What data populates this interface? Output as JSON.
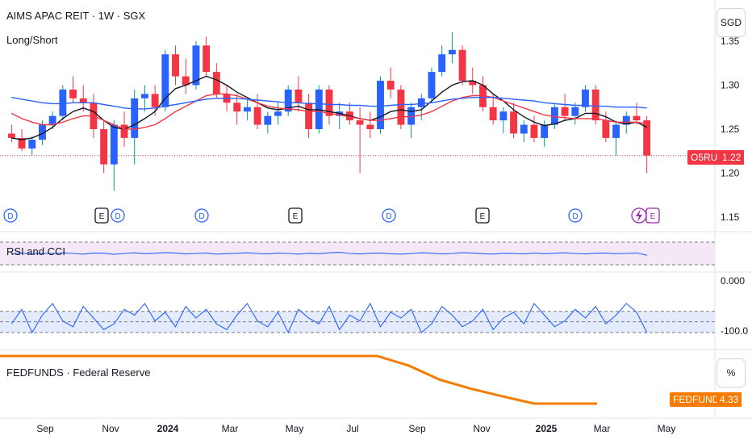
{
  "header": {
    "title": "AIMS APAC REIT · 1W · SGX",
    "subtitle": "Long/Short",
    "currency": "SGD"
  },
  "price_tag": {
    "symbol": "O5RU",
    "value": "1.22"
  },
  "rsi_pane": {
    "label": "RSI and CCI"
  },
  "cci_pane": {
    "tick_top": "0.000",
    "tick_bottom": "-100.0"
  },
  "fed_pane": {
    "label": "FEDFUNDS · Federal Reserve",
    "unit": "%",
    "tag_symbol": "FEDFUNDS",
    "tag_value": "4.33"
  },
  "colors": {
    "up": "#2962ff",
    "down": "#f23645",
    "ma_fast": "#131722",
    "ma_slow": "#f23645",
    "ma_blue": "#2962ff",
    "fed": "#f57c00"
  },
  "chart_data": [
    {
      "type": "candlestick",
      "title": "AIMS APAC REIT · 1W · SGX",
      "ylabel": "SGD",
      "yticks": [
        "1.35",
        "1.30",
        "1.25",
        "1.20",
        "1.15"
      ],
      "ylim": [
        1.14,
        1.36
      ],
      "x_ticks": [
        "Sep",
        "Nov",
        "2024",
        "Mar",
        "May",
        "Jul",
        "Sep",
        "Nov",
        "2025",
        "Mar",
        "May"
      ],
      "last_price": 1.22,
      "candles": [
        [
          1.245,
          1.255,
          1.235,
          1.24
        ],
        [
          1.24,
          1.25,
          1.225,
          1.228
        ],
        [
          1.228,
          1.242,
          1.22,
          1.238
        ],
        [
          1.238,
          1.26,
          1.232,
          1.255
        ],
        [
          1.255,
          1.27,
          1.25,
          1.265
        ],
        [
          1.265,
          1.3,
          1.26,
          1.295
        ],
        [
          1.295,
          1.31,
          1.28,
          1.285
        ],
        [
          1.285,
          1.3,
          1.27,
          1.28
        ],
        [
          1.28,
          1.29,
          1.24,
          1.25
        ],
        [
          1.25,
          1.26,
          1.2,
          1.21
        ],
        [
          1.21,
          1.26,
          1.18,
          1.255
        ],
        [
          1.255,
          1.27,
          1.23,
          1.24
        ],
        [
          1.24,
          1.295,
          1.21,
          1.285
        ],
        [
          1.285,
          1.3,
          1.27,
          1.29
        ],
        [
          1.29,
          1.3,
          1.265,
          1.275
        ],
        [
          1.275,
          1.34,
          1.27,
          1.335
        ],
        [
          1.335,
          1.345,
          1.3,
          1.31
        ],
        [
          1.31,
          1.33,
          1.29,
          1.3
        ],
        [
          1.3,
          1.35,
          1.295,
          1.345
        ],
        [
          1.345,
          1.355,
          1.31,
          1.315
        ],
        [
          1.315,
          1.325,
          1.285,
          1.29
        ],
        [
          1.29,
          1.3,
          1.27,
          1.28
        ],
        [
          1.28,
          1.29,
          1.255,
          1.27
        ],
        [
          1.27,
          1.285,
          1.26,
          1.275
        ],
        [
          1.275,
          1.29,
          1.25,
          1.255
        ],
        [
          1.255,
          1.27,
          1.245,
          1.265
        ],
        [
          1.265,
          1.28,
          1.255,
          1.27
        ],
        [
          1.27,
          1.3,
          1.265,
          1.295
        ],
        [
          1.295,
          1.31,
          1.27,
          1.28
        ],
        [
          1.28,
          1.29,
          1.24,
          1.25
        ],
        [
          1.25,
          1.3,
          1.245,
          1.295
        ],
        [
          1.295,
          1.3,
          1.255,
          1.265
        ],
        [
          1.265,
          1.28,
          1.25,
          1.27
        ],
        [
          1.27,
          1.28,
          1.255,
          1.26
        ],
        [
          1.26,
          1.275,
          1.2,
          1.255
        ],
        [
          1.255,
          1.27,
          1.24,
          1.25
        ],
        [
          1.25,
          1.31,
          1.245,
          1.305
        ],
        [
          1.305,
          1.32,
          1.285,
          1.295
        ],
        [
          1.295,
          1.3,
          1.25,
          1.255
        ],
        [
          1.255,
          1.28,
          1.24,
          1.275
        ],
        [
          1.275,
          1.29,
          1.26,
          1.285
        ],
        [
          1.285,
          1.32,
          1.28,
          1.315
        ],
        [
          1.315,
          1.345,
          1.31,
          1.335
        ],
        [
          1.335,
          1.36,
          1.325,
          1.34
        ],
        [
          1.34,
          1.345,
          1.3,
          1.305
        ],
        [
          1.305,
          1.32,
          1.29,
          1.3
        ],
        [
          1.3,
          1.31,
          1.27,
          1.275
        ],
        [
          1.275,
          1.29,
          1.255,
          1.26
        ],
        [
          1.26,
          1.275,
          1.245,
          1.27
        ],
        [
          1.27,
          1.28,
          1.24,
          1.245
        ],
        [
          1.245,
          1.26,
          1.235,
          1.255
        ],
        [
          1.255,
          1.265,
          1.235,
          1.24
        ],
        [
          1.24,
          1.26,
          1.23,
          1.255
        ],
        [
          1.255,
          1.28,
          1.25,
          1.275
        ],
        [
          1.275,
          1.29,
          1.26,
          1.265
        ],
        [
          1.265,
          1.28,
          1.255,
          1.275
        ],
        [
          1.275,
          1.3,
          1.27,
          1.295
        ],
        [
          1.295,
          1.3,
          1.255,
          1.26
        ],
        [
          1.26,
          1.27,
          1.235,
          1.24
        ],
        [
          1.24,
          1.26,
          1.22,
          1.255
        ],
        [
          1.255,
          1.27,
          1.245,
          1.265
        ],
        [
          1.265,
          1.28,
          1.255,
          1.26
        ],
        [
          1.26,
          1.265,
          1.2,
          1.22
        ]
      ],
      "series": [
        {
          "name": "",
          "color": "#131722",
          "values": [
            1.24,
            1.238,
            1.24,
            1.245,
            1.252,
            1.262,
            1.27,
            1.274,
            1.27,
            1.26,
            1.252,
            1.25,
            1.255,
            1.262,
            1.27,
            1.285,
            1.296,
            1.3,
            1.305,
            1.31,
            1.306,
            1.3,
            1.292,
            1.286,
            1.28,
            1.274,
            1.272,
            1.274,
            1.276,
            1.272,
            1.272,
            1.27,
            1.268,
            1.265,
            1.262,
            1.26,
            1.264,
            1.27,
            1.272,
            1.27,
            1.272,
            1.282,
            1.292,
            1.3,
            1.304,
            1.305,
            1.3,
            1.29,
            1.282,
            1.272,
            1.264,
            1.258,
            1.254,
            1.256,
            1.26,
            1.262,
            1.268,
            1.268,
            1.264,
            1.258,
            1.256,
            1.258,
            1.252
          ]
        },
        {
          "name": "",
          "color": "#f23645",
          "values": [
            1.268,
            1.262,
            1.258,
            1.255,
            1.255,
            1.258,
            1.262,
            1.265,
            1.265,
            1.26,
            1.255,
            1.25,
            1.25,
            1.252,
            1.255,
            1.262,
            1.27,
            1.276,
            1.282,
            1.288,
            1.29,
            1.29,
            1.288,
            1.284,
            1.28,
            1.276,
            1.274,
            1.273,
            1.272,
            1.27,
            1.27,
            1.268,
            1.266,
            1.264,
            1.262,
            1.26,
            1.26,
            1.262,
            1.264,
            1.264,
            1.266,
            1.27,
            1.276,
            1.282,
            1.286,
            1.288,
            1.288,
            1.286,
            1.282,
            1.278,
            1.274,
            1.27,
            1.266,
            1.264,
            1.263,
            1.262,
            1.262,
            1.262,
            1.26,
            1.258,
            1.258,
            1.258,
            1.256
          ]
        },
        {
          "name": "",
          "color": "#2962ff",
          "values": [
            1.286,
            1.284,
            1.282,
            1.28,
            1.279,
            1.279,
            1.28,
            1.28,
            1.28,
            1.278,
            1.276,
            1.274,
            1.273,
            1.273,
            1.274,
            1.276,
            1.278,
            1.28,
            1.282,
            1.284,
            1.285,
            1.285,
            1.285,
            1.284,
            1.283,
            1.282,
            1.281,
            1.28,
            1.28,
            1.279,
            1.279,
            1.278,
            1.278,
            1.277,
            1.277,
            1.276,
            1.276,
            1.277,
            1.278,
            1.278,
            1.279,
            1.28,
            1.282,
            1.284,
            1.285,
            1.286,
            1.286,
            1.286,
            1.285,
            1.284,
            1.283,
            1.282,
            1.28,
            1.279,
            1.278,
            1.277,
            1.277,
            1.276,
            1.276,
            1.275,
            1.275,
            1.275,
            1.274
          ]
        }
      ]
    },
    {
      "type": "line",
      "title": "RSI and CCI",
      "ylim": [
        0,
        100
      ],
      "bands": [
        65,
        38
      ],
      "series": [
        {
          "name": "",
          "values": [
            50,
            52,
            48,
            51,
            49,
            53,
            50,
            47,
            52,
            51,
            46,
            50,
            53,
            49,
            51,
            54,
            52,
            48,
            50,
            52,
            47,
            49,
            51,
            53,
            50,
            48,
            52,
            50,
            47,
            51,
            49,
            53,
            55,
            50,
            48,
            51,
            52,
            49,
            47,
            50,
            53,
            51,
            48,
            50,
            54,
            52,
            49,
            47,
            51,
            50,
            48,
            52,
            49,
            51,
            53,
            50,
            48,
            51,
            52,
            49,
            50,
            52,
            42
          ]
        }
      ]
    },
    {
      "type": "line",
      "title": "",
      "yticks": [
        "0.000",
        "-100.0"
      ],
      "ylim": [
        -150,
        100
      ],
      "bands": [
        -50,
        -100
      ],
      "series": [
        {
          "name": "",
          "values": [
            -90,
            -40,
            -120,
            -60,
            -20,
            -80,
            -100,
            -30,
            -70,
            -110,
            -90,
            -40,
            -60,
            -20,
            -80,
            -50,
            -100,
            -30,
            -70,
            -40,
            -90,
            -110,
            -60,
            -20,
            -80,
            -100,
            -50,
            -120,
            -40,
            -70,
            -90,
            -30,
            -110,
            -60,
            -80,
            -20,
            -100,
            -50,
            -70,
            -40,
            -120,
            -90,
            -30,
            -60,
            -100,
            -80,
            -40,
            -110,
            -70,
            -50,
            -90,
            -20,
            -60,
            -100,
            -80,
            -40,
            -70,
            -30,
            -90,
            -60,
            -20,
            -50,
            -120
          ]
        }
      ]
    },
    {
      "type": "line",
      "title": "FEDFUNDS · Federal Reserve",
      "ylabel": "%",
      "last_value": 4.33,
      "x": [
        "2023-08",
        "2023-09",
        "2023-10",
        "2023-11",
        "2023-12",
        "2024-01",
        "2024-02",
        "2024-03",
        "2024-04",
        "2024-05",
        "2024-06",
        "2024-07",
        "2024-08",
        "2024-09",
        "2024-10",
        "2024-11",
        "2024-12",
        "2025-01",
        "2025-02",
        "2025-03"
      ],
      "series": [
        {
          "name": "FEDFUNDS",
          "values": [
            5.33,
            5.33,
            5.33,
            5.33,
            5.33,
            5.33,
            5.33,
            5.33,
            5.33,
            5.33,
            5.33,
            5.33,
            5.33,
            5.13,
            4.83,
            4.64,
            4.48,
            4.33,
            4.33,
            4.33
          ]
        }
      ]
    }
  ]
}
